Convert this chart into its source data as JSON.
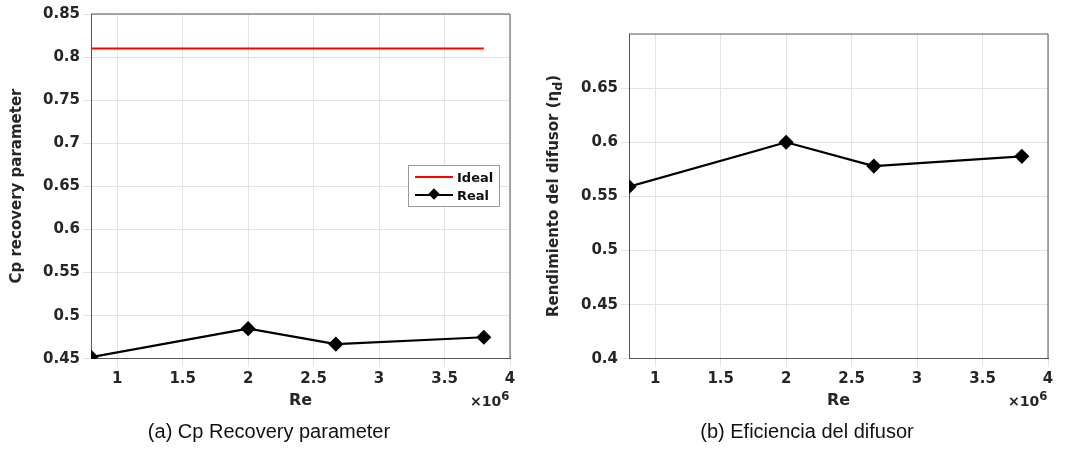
{
  "chart_data": [
    {
      "type": "line",
      "xlabel": "Re",
      "ylabel": "Cp recovery parameter",
      "xlim": [
        0.8,
        4
      ],
      "ylim": [
        0.45,
        0.85
      ],
      "xticks": [
        1,
        1.5,
        2,
        2.5,
        3,
        3.5,
        4
      ],
      "yticks": [
        0.45,
        0.5,
        0.55,
        0.6,
        0.65,
        0.7,
        0.75,
        0.8,
        0.85
      ],
      "grid": true,
      "legend": "right",
      "line_style": "solid",
      "series": [
        {
          "name": "Ideal",
          "color": "#ff0000",
          "marker": "none",
          "x": [
            0.8,
            3.8
          ],
          "values": [
            0.81,
            0.81
          ]
        },
        {
          "name": "Real",
          "color": "#000000",
          "marker": "diamond",
          "x": [
            0.8,
            2,
            2.67,
            3.8
          ],
          "values": [
            0.452,
            0.485,
            0.467,
            0.475
          ]
        }
      ],
      "annotations": [
        "×10$^{6}$",
        "(a)  Cp Recovery parameter"
      ]
    },
    {
      "type": "line",
      "xlabel": "Re",
      "ylabel": "Rendimiento del difusor (η$_{d}$)",
      "xlim": [
        0.8,
        4
      ],
      "ylim": [
        0.4,
        0.7
      ],
      "xticks": [
        1,
        1.5,
        2,
        2.5,
        3,
        3.5,
        4
      ],
      "yticks": [
        0.4,
        0.45,
        0.5,
        0.55,
        0.6,
        0.65
      ],
      "grid": true,
      "line_style": "solid",
      "series": [
        {
          "color": "#000000",
          "marker": "diamond",
          "x": [
            0.8,
            2,
            2.67,
            3.8
          ],
          "values": [
            0.559,
            0.6,
            0.578,
            0.587
          ]
        }
      ],
      "annotations": [
        "×10$^{6}$",
        "(b)  Eficiencia del difusor"
      ]
    }
  ]
}
